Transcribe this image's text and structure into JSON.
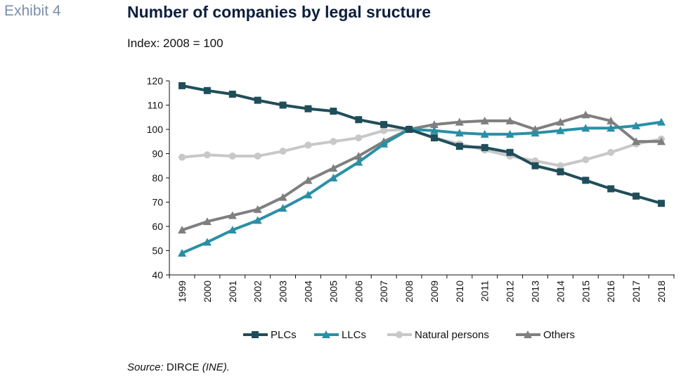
{
  "header": {
    "exhibit": "Exhibit 4",
    "title": "Number of companies by legal sructure",
    "subtitle": "Index: 2008 = 100"
  },
  "footer": {
    "source_label": "Source:",
    "source_name": "DIRCE",
    "source_org": "(INE)."
  },
  "chart_data": {
    "type": "line",
    "title": "Number of companies by legal sructure",
    "subtitle": "Index: 2008 = 100",
    "x": [
      1999,
      2000,
      2001,
      2002,
      2003,
      2004,
      2005,
      2006,
      2007,
      2008,
      2009,
      2010,
      2011,
      2012,
      2013,
      2014,
      2015,
      2016,
      2017,
      2018
    ],
    "ylim": [
      40,
      120
    ],
    "yticks": [
      40,
      50,
      60,
      70,
      80,
      90,
      100,
      110,
      120
    ],
    "grid": false,
    "legend_position": "bottom",
    "series": [
      {
        "name": "PLCs",
        "color": "#1f4e5a",
        "marker": "square",
        "values": [
          118,
          116,
          114.5,
          112,
          110,
          108.5,
          107.5,
          104,
          102,
          100,
          96.5,
          93,
          92.5,
          90.5,
          85,
          82.5,
          79,
          75.5,
          72.5,
          69.5
        ]
      },
      {
        "name": "LLCs",
        "color": "#2a8fa6",
        "marker": "triangle",
        "values": [
          49,
          53.5,
          58.5,
          62.5,
          67.5,
          73,
          80,
          86.5,
          94,
          100,
          99.5,
          98.5,
          98,
          98,
          98.5,
          99.5,
          100.5,
          100.5,
          101.5,
          103
        ]
      },
      {
        "name": "Natural persons",
        "color": "#c8c8c8",
        "marker": "circle",
        "values": [
          88.5,
          89.5,
          89,
          89,
          91,
          93.5,
          95,
          96.5,
          99.5,
          100,
          96.5,
          94,
          91.5,
          89,
          87,
          85,
          87.5,
          90.5,
          94,
          96
        ]
      },
      {
        "name": "Others",
        "color": "#7f7f7f",
        "marker": "triangle",
        "values": [
          58.5,
          62,
          64.5,
          67,
          72,
          79,
          84,
          89,
          95,
          100,
          102,
          103,
          103.5,
          103.5,
          100,
          103,
          106,
          103.5,
          95,
          95
        ]
      }
    ]
  }
}
